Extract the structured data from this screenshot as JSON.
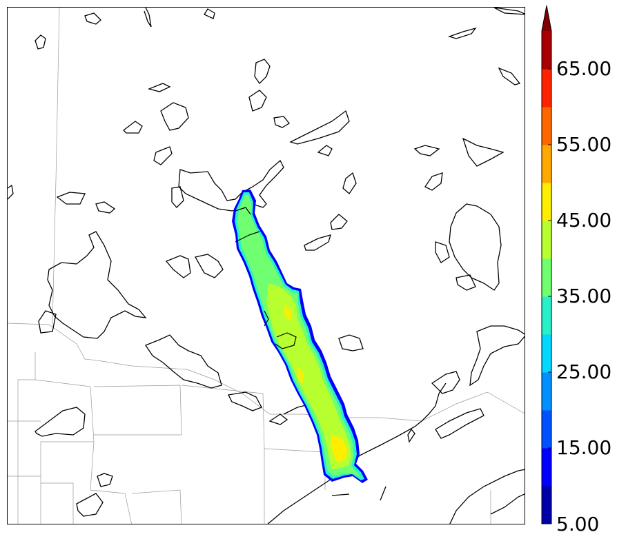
{
  "colorbar": {
    "labels": [
      "65.00",
      "55.00",
      "45.00",
      "35.00",
      "25.00",
      "15.00",
      "5.00"
    ],
    "bins": [
      {
        "from": 5,
        "to": 10,
        "color": "#0000a8"
      },
      {
        "from": 10,
        "to": 15,
        "color": "#0000ff"
      },
      {
        "from": 15,
        "to": 20,
        "color": "#0050ff"
      },
      {
        "from": 20,
        "to": 25,
        "color": "#0090ff"
      },
      {
        "from": 25,
        "to": 30,
        "color": "#00d8ff"
      },
      {
        "from": 30,
        "to": 35,
        "color": "#28f0c8"
      },
      {
        "from": 35,
        "to": 40,
        "color": "#70ff70"
      },
      {
        "from": 40,
        "to": 45,
        "color": "#b8ff30"
      },
      {
        "from": 45,
        "to": 50,
        "color": "#ffee00"
      },
      {
        "from": 50,
        "to": 55,
        "color": "#ffa800"
      },
      {
        "from": 55,
        "to": 60,
        "color": "#ff6600"
      },
      {
        "from": 60,
        "to": 65,
        "color": "#ff2200"
      },
      {
        "from": 65,
        "to": 70,
        "color": "#a80000"
      }
    ],
    "extend": "max",
    "extend_color": "#800000"
  },
  "map": {
    "background": "#ffffff",
    "field": "narrow NW–SE reflectivity band over lake region",
    "field_colors": {
      "edge": "#0000ff",
      "low": "#28f0c8",
      "mid": "#70ff70",
      "high": "#b8ff30",
      "peak": "#ffee00"
    }
  }
}
